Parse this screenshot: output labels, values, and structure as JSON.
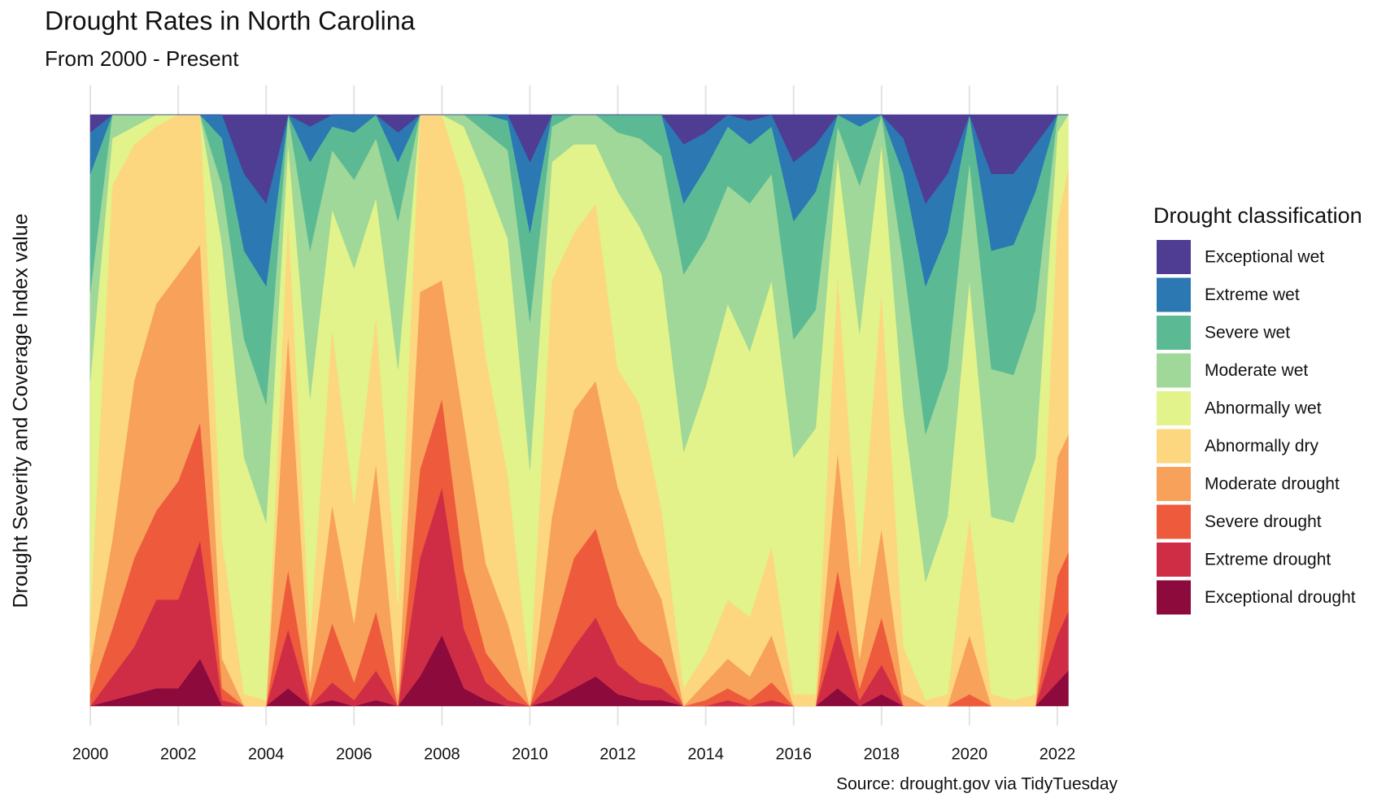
{
  "chart_data": {
    "type": "stacked_area",
    "title": "Drought Rates in North Carolina",
    "subtitle": "From 2000 - Present",
    "ylabel": "Drought Severity and Coverage Index value",
    "caption": "Source: drought.gov via TidyTuesday",
    "legend_title": "Drought classification",
    "legend_position": "right",
    "grid": true,
    "x": [
      2000,
      2000.5,
      2001,
      2001.5,
      2002,
      2002.5,
      2003,
      2003.5,
      2004,
      2004.5,
      2005,
      2005.5,
      2006,
      2006.5,
      2007,
      2007.5,
      2008,
      2008.5,
      2009,
      2009.5,
      2010,
      2010.5,
      2011,
      2011.5,
      2012,
      2012.5,
      2013,
      2013.5,
      2014,
      2014.5,
      2015,
      2015.5,
      2016,
      2016.5,
      2017,
      2017.5,
      2018,
      2018.5,
      2019,
      2019.5,
      2020,
      2020.5,
      2021,
      2021.5,
      2022,
      2022.25
    ],
    "xlim": [
      1999.9,
      2022.45
    ],
    "xticks": [
      2000,
      2002,
      2004,
      2006,
      2008,
      2010,
      2012,
      2014,
      2016,
      2018,
      2020,
      2022
    ],
    "ylim": [
      0,
      100
    ],
    "series": [
      {
        "name": "Exceptional wet",
        "color": "#4e3d93",
        "values": [
          3,
          0,
          0,
          0,
          0,
          0,
          0,
          10,
          15,
          0,
          2,
          0,
          0,
          0,
          3,
          0,
          0,
          0,
          0,
          0,
          8,
          0,
          0,
          0,
          0,
          0,
          0,
          5,
          3,
          0,
          1,
          0,
          8,
          5,
          0,
          0,
          0,
          4,
          15,
          10,
          0,
          10,
          10,
          5,
          0,
          0
        ]
      },
      {
        "name": "Extreme wet",
        "color": "#2b78b3",
        "values": [
          7,
          0,
          0,
          0,
          0,
          0,
          4,
          13,
          14,
          0,
          6,
          2,
          3,
          0,
          5,
          0,
          0,
          0,
          0,
          1,
          12,
          0,
          0,
          0,
          0,
          0,
          0,
          10,
          6,
          2,
          4,
          2,
          10,
          8,
          0,
          2,
          0,
          6,
          14,
          10,
          0,
          13,
          12,
          8,
          0,
          0
        ]
      },
      {
        "name": "Severe wet",
        "color": "#5bba94",
        "values": [
          20,
          0,
          0,
          0,
          0,
          0,
          8,
          15,
          20,
          0,
          15,
          4,
          8,
          4,
          10,
          0,
          0,
          0,
          3,
          5,
          15,
          2,
          0,
          0,
          3,
          4,
          7,
          12,
          12,
          10,
          10,
          8,
          20,
          20,
          2,
          10,
          0,
          15,
          25,
          23,
          8,
          20,
          22,
          20,
          0,
          0
        ]
      },
      {
        "name": "Moderate wet",
        "color": "#9fd898",
        "values": [
          15,
          4,
          2,
          0,
          0,
          0,
          10,
          20,
          20,
          5,
          25,
          10,
          15,
          10,
          25,
          0,
          0,
          2,
          8,
          15,
          25,
          6,
          5,
          5,
          10,
          15,
          20,
          30,
          25,
          20,
          25,
          18,
          20,
          20,
          5,
          25,
          5,
          25,
          25,
          25,
          20,
          25,
          25,
          25,
          3,
          0
        ]
      },
      {
        "name": "Abnormally wet",
        "color": "#e1f38a",
        "values": [
          40,
          8,
          3,
          2,
          0,
          0,
          50,
          40,
          30,
          12,
          40,
          20,
          40,
          20,
          40,
          0,
          0,
          10,
          30,
          40,
          35,
          20,
          15,
          10,
          30,
          30,
          40,
          40,
          45,
          50,
          45,
          45,
          40,
          45,
          20,
          40,
          25,
          40,
          20,
          30,
          40,
          30,
          30,
          40,
          15,
          9
        ]
      },
      {
        "name": "Abnormally dry",
        "color": "#fcd77f",
        "values": [
          8,
          60,
          40,
          30,
          27,
          22,
          20,
          2,
          1,
          20,
          8,
          30,
          20,
          25,
          15,
          30,
          28,
          40,
          35,
          25,
          5,
          40,
          30,
          30,
          20,
          25,
          15,
          3,
          5,
          10,
          10,
          15,
          2,
          2,
          30,
          15,
          40,
          8,
          1,
          2,
          20,
          2,
          1,
          2,
          40,
          45
        ]
      },
      {
        "name": "Moderate drought",
        "color": "#f7a15a",
        "values": [
          5,
          15,
          30,
          35,
          35,
          30,
          5,
          0,
          0,
          40,
          3,
          20,
          10,
          25,
          2,
          30,
          20,
          25,
          15,
          10,
          0,
          20,
          25,
          25,
          20,
          15,
          10,
          0,
          3,
          5,
          4,
          8,
          0,
          0,
          20,
          5,
          15,
          2,
          0,
          0,
          10,
          0,
          0,
          0,
          20,
          20
        ]
      },
      {
        "name": "Severe drought",
        "color": "#ee5a3c",
        "values": [
          2,
          8,
          15,
          15,
          20,
          20,
          2,
          0,
          0,
          10,
          1,
          10,
          3,
          10,
          0,
          15,
          15,
          10,
          5,
          3,
          0,
          8,
          15,
          15,
          10,
          7,
          5,
          0,
          1,
          2,
          1,
          3,
          0,
          0,
          10,
          2,
          8,
          0,
          0,
          0,
          2,
          0,
          0,
          0,
          10,
          10
        ]
      },
      {
        "name": "Extreme drought",
        "color": "#cf2d46",
        "values": [
          0,
          4,
          8,
          15,
          15,
          20,
          1,
          0,
          0,
          10,
          0,
          3,
          1,
          5,
          0,
          20,
          25,
          10,
          3,
          1,
          0,
          3,
          7,
          10,
          5,
          3,
          2,
          0,
          0,
          1,
          0,
          1,
          0,
          0,
          10,
          1,
          5,
          0,
          0,
          0,
          0,
          0,
          0,
          0,
          8,
          10
        ]
      },
      {
        "name": "Exceptional drought",
        "color": "#8c0a3c",
        "values": [
          0,
          1,
          2,
          3,
          3,
          8,
          0,
          0,
          0,
          3,
          0,
          1,
          0,
          1,
          0,
          5,
          12,
          3,
          1,
          0,
          0,
          1,
          3,
          5,
          2,
          1,
          1,
          0,
          0,
          0,
          0,
          0,
          0,
          0,
          3,
          0,
          2,
          0,
          0,
          0,
          0,
          0,
          0,
          0,
          4,
          6
        ]
      }
    ]
  }
}
